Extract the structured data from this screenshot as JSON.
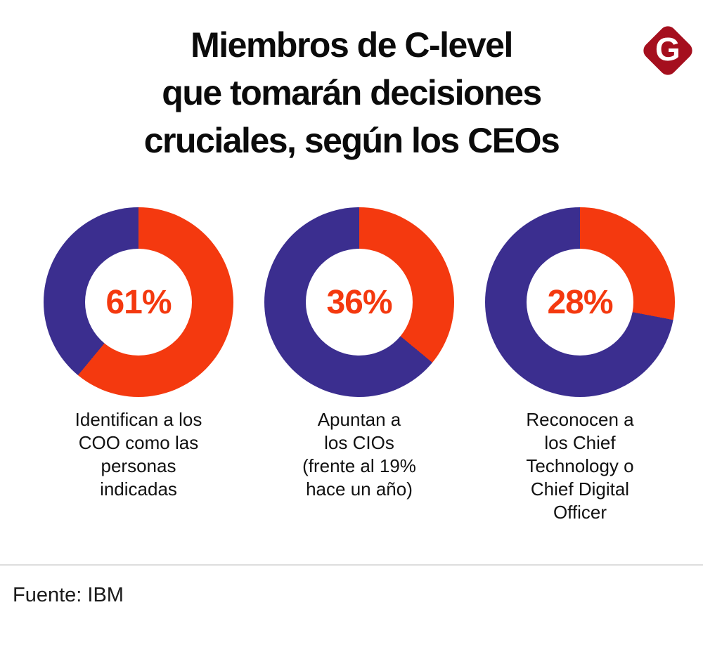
{
  "header": {
    "title": "Miembros de C-level\nque tomarán decisiones\ncruciales, según los CEOs",
    "logo": {
      "letter": "G",
      "background_color": "#A50F1E",
      "letter_color": "#FFFFFF"
    }
  },
  "chart_data": {
    "type": "pie",
    "subtype": "donut-multiples",
    "title": "Miembros de C-level que tomarán decisiones cruciales, según los CEOs",
    "legend": false,
    "colors": {
      "value_color": "#F4390F",
      "remainder_color": "#3B2E8F",
      "hole_color": "#FFFFFF"
    },
    "series": [
      {
        "value": 61,
        "remainder": 39,
        "center_text": "61%",
        "label": "Identifican a los\nCOO como las\npersonas\nindicadas"
      },
      {
        "value": 36,
        "remainder": 64,
        "center_text": "36%",
        "label": "Apuntan a\nlos CIOs\n(frente al 19%\nhace un año)"
      },
      {
        "value": 28,
        "remainder": 72,
        "center_text": "28%",
        "label": "Reconocen a\nlos Chief\nTechnology o\nChief Digital\nOfficer"
      }
    ]
  },
  "footer": {
    "source": "Fuente: IBM"
  }
}
